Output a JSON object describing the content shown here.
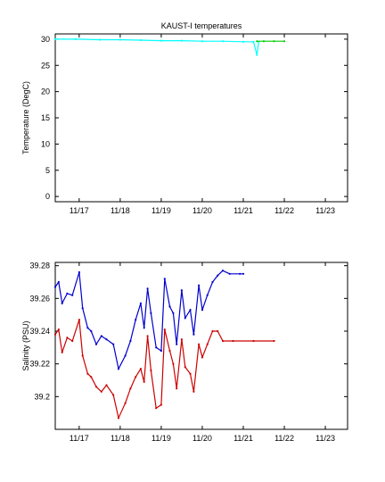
{
  "chart_data": [
    {
      "type": "line",
      "title": "KAUST-I temperatures",
      "xlabel": "",
      "ylabel": "Temperature (DegC)",
      "xlim": [
        "11/16 10:00",
        "11/23 13:00"
      ],
      "ylim": [
        -1,
        31
      ],
      "grid": false,
      "x_ticks": [
        "11/17",
        "11/18",
        "11/19",
        "11/20",
        "11/21",
        "11/22",
        "11/23"
      ],
      "y_ticks": [
        "0",
        "5",
        "10",
        "15",
        "20",
        "25",
        "30"
      ],
      "y_tick_values": [
        0,
        5,
        10,
        15,
        20,
        25,
        30
      ],
      "series": [
        {
          "color": "#00ffff",
          "x": [
            "11/16 10:00",
            "11/16 22:00",
            "11/17 12:00",
            "11/18 00:00",
            "11/18 12:00",
            "11/19 00:00",
            "11/19 12:00",
            "11/20 00:00",
            "11/20 12:00",
            "11/21 00:00",
            "11/21 06:00",
            "11/21 08:00",
            "11/21 09:00"
          ],
          "y": [
            30.0,
            30.0,
            29.9,
            29.9,
            29.8,
            29.7,
            29.7,
            29.6,
            29.6,
            29.5,
            29.5,
            27.0,
            29.5
          ]
        },
        {
          "color": "#00cc00",
          "x": [
            "11/21 08:00",
            "11/21 12:00",
            "11/21 18:00",
            "11/22 00:00"
          ],
          "y": [
            29.6,
            29.6,
            29.6,
            29.6
          ]
        }
      ]
    },
    {
      "type": "line",
      "title": "",
      "xlabel": "",
      "ylabel": "Salinity (PSU)",
      "xlim": [
        "11/16 10:00",
        "11/23 13:00"
      ],
      "ylim": [
        39.18,
        39.282
      ],
      "grid": false,
      "x_ticks": [
        "11/17",
        "11/18",
        "11/19",
        "11/20",
        "11/21",
        "11/22",
        "11/23"
      ],
      "y_ticks": [
        "39.2",
        "39.22",
        "39.24",
        "39.26",
        "39.28"
      ],
      "y_tick_values": [
        39.2,
        39.22,
        39.24,
        39.26,
        39.28
      ],
      "series": [
        {
          "color": "#0000cc",
          "x": [
            "11/16 10:00",
            "11/16 12:00",
            "11/16 14:00",
            "11/16 17:00",
            "11/16 20:00",
            "11/17 00:00",
            "11/17 02:00",
            "11/17 05:00",
            "11/17 07:00",
            "11/17 10:00",
            "11/17 13:00",
            "11/17 16:00",
            "11/17 20:00",
            "11/17 23:00",
            "11/18 03:00",
            "11/18 06:00",
            "11/18 09:00",
            "11/18 12:00",
            "11/18 14:00",
            "11/18 16:00",
            "11/18 18:00",
            "11/18 21:00",
            "11/19 00:00",
            "11/19 02:00",
            "11/19 05:00",
            "11/19 07:00",
            "11/19 09:00",
            "11/19 12:00",
            "11/19 14:00",
            "11/19 17:00",
            "11/19 19:00",
            "11/19 22:00",
            "11/20 00:00",
            "11/20 03:00",
            "11/20 06:00",
            "11/20 09:00",
            "11/20 12:00",
            "11/20 16:00",
            "11/20 22:00",
            "11/21 00:00"
          ],
          "y": [
            39.267,
            39.27,
            39.257,
            39.263,
            39.262,
            39.276,
            39.254,
            39.242,
            39.24,
            39.232,
            39.237,
            39.235,
            39.232,
            39.217,
            39.225,
            39.234,
            39.247,
            39.257,
            39.242,
            39.266,
            39.251,
            39.23,
            39.228,
            39.272,
            39.255,
            39.251,
            39.232,
            39.265,
            39.248,
            39.253,
            39.238,
            39.268,
            39.253,
            39.262,
            39.27,
            39.274,
            39.277,
            39.275,
            39.275,
            39.275
          ]
        },
        {
          "color": "#cc0000",
          "x": [
            "11/16 10:00",
            "11/16 12:00",
            "11/16 14:00",
            "11/16 17:00",
            "11/16 20:00",
            "11/17 00:00",
            "11/17 02:00",
            "11/17 05:00",
            "11/17 07:00",
            "11/17 10:00",
            "11/17 13:00",
            "11/17 16:00",
            "11/17 20:00",
            "11/17 23:00",
            "11/18 03:00",
            "11/18 06:00",
            "11/18 09:00",
            "11/18 12:00",
            "11/18 14:00",
            "11/18 16:00",
            "11/18 18:00",
            "11/18 21:00",
            "11/19 00:00",
            "11/19 02:00",
            "11/19 05:00",
            "11/19 07:00",
            "11/19 09:00",
            "11/19 12:00",
            "11/19 14:00",
            "11/19 17:00",
            "11/19 19:00",
            "11/19 22:00",
            "11/20 00:00",
            "11/20 03:00",
            "11/20 06:00",
            "11/20 09:00",
            "11/20 12:00",
            "11/20 18:00",
            "11/21 06:00",
            "11/21 18:00"
          ],
          "y": [
            39.238,
            39.241,
            39.227,
            39.236,
            39.234,
            39.247,
            39.225,
            39.214,
            39.212,
            39.206,
            39.203,
            39.207,
            39.201,
            39.187,
            39.196,
            39.205,
            39.212,
            39.217,
            39.209,
            39.237,
            39.216,
            39.193,
            39.195,
            39.241,
            39.228,
            39.22,
            39.205,
            39.235,
            39.218,
            39.214,
            39.203,
            39.232,
            39.224,
            39.232,
            39.24,
            39.24,
            39.234,
            39.234,
            39.234,
            39.234
          ]
        }
      ]
    }
  ]
}
